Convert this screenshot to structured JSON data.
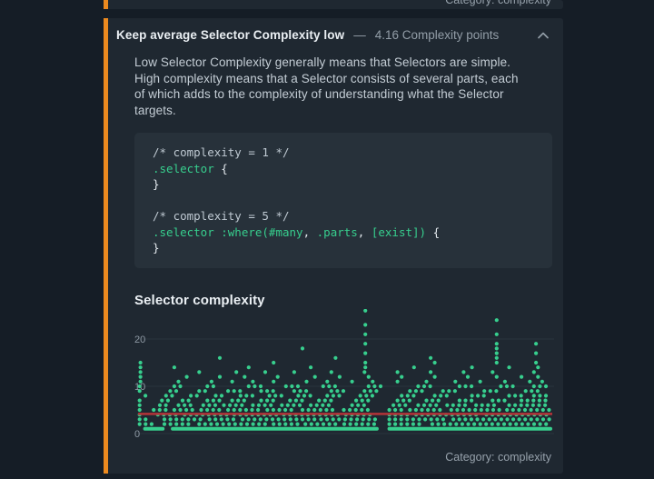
{
  "colors": {
    "accent_orange": "#ec8a1f",
    "pass_green": "#2fbf8c",
    "dot_green": "#37cf8e",
    "avg_red": "#b03338",
    "card_bg": "#1f2831",
    "page_bg": "#151d26"
  },
  "prev_card": {
    "footer": "Category: complexity"
  },
  "card": {
    "title": "Keep average Selector Complexity low",
    "separator": "—",
    "metric": "4.16 Complexity points",
    "collapse_icon": "chevron-up",
    "description_lines": [
      "Low Selector Complexity generally means that Selectors are simple.",
      "High complexity means that a Selector consists of several parts, each",
      "of which adds to the complexity of understanding what the Selector",
      "targets."
    ],
    "code_lines": [
      [
        [
          "cmt",
          "/* complexity = 1 */"
        ]
      ],
      [
        [
          "sel",
          ".selector"
        ],
        [
          "pun",
          " {"
        ]
      ],
      [
        [
          "pun",
          "}"
        ]
      ],
      [
        [
          "pun",
          ""
        ]
      ],
      [
        [
          "cmt",
          "/* complexity = 5 */"
        ]
      ],
      [
        [
          "sel",
          ".selector :where(#many"
        ],
        [
          "pun",
          ", "
        ],
        [
          "sel",
          ".parts"
        ],
        [
          "pun",
          ", "
        ],
        [
          "sel",
          "[exist])"
        ],
        [
          "pun",
          " {"
        ]
      ],
      [
        [
          "pun",
          "}"
        ]
      ]
    ],
    "footer": "Category: complexity"
  },
  "chart_data": {
    "type": "scatter",
    "title": "Selector complexity",
    "xlabel": "",
    "ylabel": "",
    "ylim": [
      0,
      27
    ],
    "yticks": [
      0,
      10,
      20
    ],
    "grid": "horizontal",
    "legend": "none",
    "x_unit": "percent",
    "point_color": "#37cf8e",
    "average_line": {
      "value": 4.16,
      "color": "#b03338"
    },
    "rows": [
      {
        "y": 1,
        "solid": true,
        "segments": [
          [
            1.9,
            6.2
          ],
          [
            8.6,
            58
          ],
          [
            61,
            100
          ]
        ]
      },
      {
        "y": 2,
        "segments": [
          [
            0.6,
            3.7
          ],
          [
            6.6,
            13.5
          ],
          [
            15,
            31.6
          ],
          [
            33,
            39.2
          ],
          [
            40.7,
            49
          ],
          [
            50.1,
            57.7
          ],
          [
            61,
            69.5
          ],
          [
            71.4,
            100
          ]
        ]
      },
      {
        "y": 3,
        "segments": [
          [
            0.6,
            2.5
          ],
          [
            6.6,
            16
          ],
          [
            17.5,
            24
          ],
          [
            25.5,
            43
          ],
          [
            44.5,
            57.7
          ],
          [
            61,
            75
          ],
          [
            76.5,
            100
          ]
        ]
      },
      {
        "y": 4,
        "segments": [
          [
            0.6,
            2
          ],
          [
            5,
            10
          ],
          [
            11.5,
            22
          ],
          [
            23.5,
            34
          ],
          [
            35.5,
            49
          ],
          [
            50.5,
            57.7
          ],
          [
            61,
            66
          ],
          [
            67.5,
            83
          ],
          [
            84.5,
            100
          ]
        ]
      },
      {
        "y": 5,
        "segments": [
          [
            0.6,
            2
          ],
          [
            4,
            7
          ],
          [
            9,
            14
          ],
          [
            15.5,
            20
          ],
          [
            22,
            30
          ],
          [
            31.5,
            38
          ],
          [
            40,
            48
          ],
          [
            50,
            56
          ],
          [
            61,
            64
          ],
          [
            66,
            74
          ],
          [
            76,
            88
          ],
          [
            89.5,
            100
          ]
        ]
      },
      {
        "y": 6,
        "segments": [
          [
            0.6,
            2
          ],
          [
            5.5,
            8
          ],
          [
            10,
            13
          ],
          [
            16,
            19
          ],
          [
            21,
            26
          ],
          [
            28,
            33
          ],
          [
            35,
            40
          ],
          [
            42,
            47
          ],
          [
            52,
            56
          ],
          [
            62,
            66
          ],
          [
            68,
            73
          ],
          [
            75,
            80
          ],
          [
            82,
            87
          ],
          [
            90,
            100
          ]
        ]
      },
      {
        "y": 7,
        "segments": [
          [
            0.6,
            1.8
          ],
          [
            6,
            8
          ],
          [
            11,
            13
          ],
          [
            17,
            20
          ],
          [
            23,
            26
          ],
          [
            30,
            34
          ],
          [
            37,
            40
          ],
          [
            44,
            47
          ],
          [
            53,
            56
          ],
          [
            63,
            67
          ],
          [
            70,
            74
          ],
          [
            78,
            82
          ],
          [
            86,
            90
          ],
          [
            93,
            99
          ]
        ]
      },
      {
        "y": 8,
        "segments": [
          [
            2,
            3.4
          ],
          [
            7,
            9
          ],
          [
            13,
            15
          ],
          [
            19,
            21
          ],
          [
            25,
            28
          ],
          [
            32,
            35
          ],
          [
            39,
            42
          ],
          [
            46,
            49
          ],
          [
            54,
            57
          ],
          [
            64,
            67
          ],
          [
            72,
            76
          ],
          [
            81,
            85
          ],
          [
            90,
            93
          ],
          [
            96,
            99.5
          ]
        ]
      },
      {
        "y": 9,
        "segments": [
          [
            0.6,
            1.2
          ],
          [
            8,
            10
          ],
          [
            15,
            17
          ],
          [
            22,
            25
          ],
          [
            30,
            33
          ],
          [
            38,
            41
          ],
          [
            47,
            50
          ],
          [
            55,
            58
          ],
          [
            66,
            69
          ],
          [
            74,
            78
          ],
          [
            84,
            88
          ],
          [
            94,
            98
          ]
        ]
      },
      {
        "y": 10,
        "segments": [
          [
            0.6,
            1.2
          ],
          [
            9,
            11
          ],
          [
            17,
            19
          ],
          [
            27,
            30
          ],
          [
            36,
            39
          ],
          [
            45,
            48
          ],
          [
            56,
            59
          ],
          [
            68,
            71
          ],
          [
            78,
            82
          ],
          [
            88,
            92
          ],
          [
            96,
            99.5
          ]
        ]
      },
      {
        "y": 11,
        "dots": [
          0.8,
          10,
          18,
          23,
          28,
          33,
          41,
          46,
          52,
          57,
          63,
          70,
          77,
          83,
          89,
          95,
          98
        ]
      },
      {
        "y": 12,
        "dots": [
          0.8,
          12,
          20,
          26,
          34,
          43,
          49,
          56,
          64,
          72,
          80,
          87,
          93,
          97
        ]
      },
      {
        "y": 13,
        "dots": [
          0.8,
          15,
          24,
          31,
          38,
          47,
          55,
          63,
          71,
          79,
          86,
          96
        ]
      },
      {
        "y": 14,
        "dots": [
          0.8,
          9,
          27,
          42,
          55.2,
          67,
          81,
          90,
          97
        ]
      },
      {
        "y": 15,
        "dots": [
          0.8,
          33,
          55.2,
          72,
          87,
          96.5
        ]
      },
      {
        "y": 16,
        "dots": [
          20,
          48,
          87
        ]
      }
    ],
    "columns": [
      {
        "x": 55.2,
        "ys": [
          17,
          19,
          21,
          23,
          26
        ]
      },
      {
        "x": 87,
        "ys": [
          17,
          18,
          19,
          21,
          24
        ]
      },
      {
        "x": 96.5,
        "ys": [
          17,
          19
        ]
      },
      {
        "x": 40,
        "ys": [
          18
        ]
      },
      {
        "x": 71,
        "ys": [
          16
        ]
      }
    ]
  }
}
